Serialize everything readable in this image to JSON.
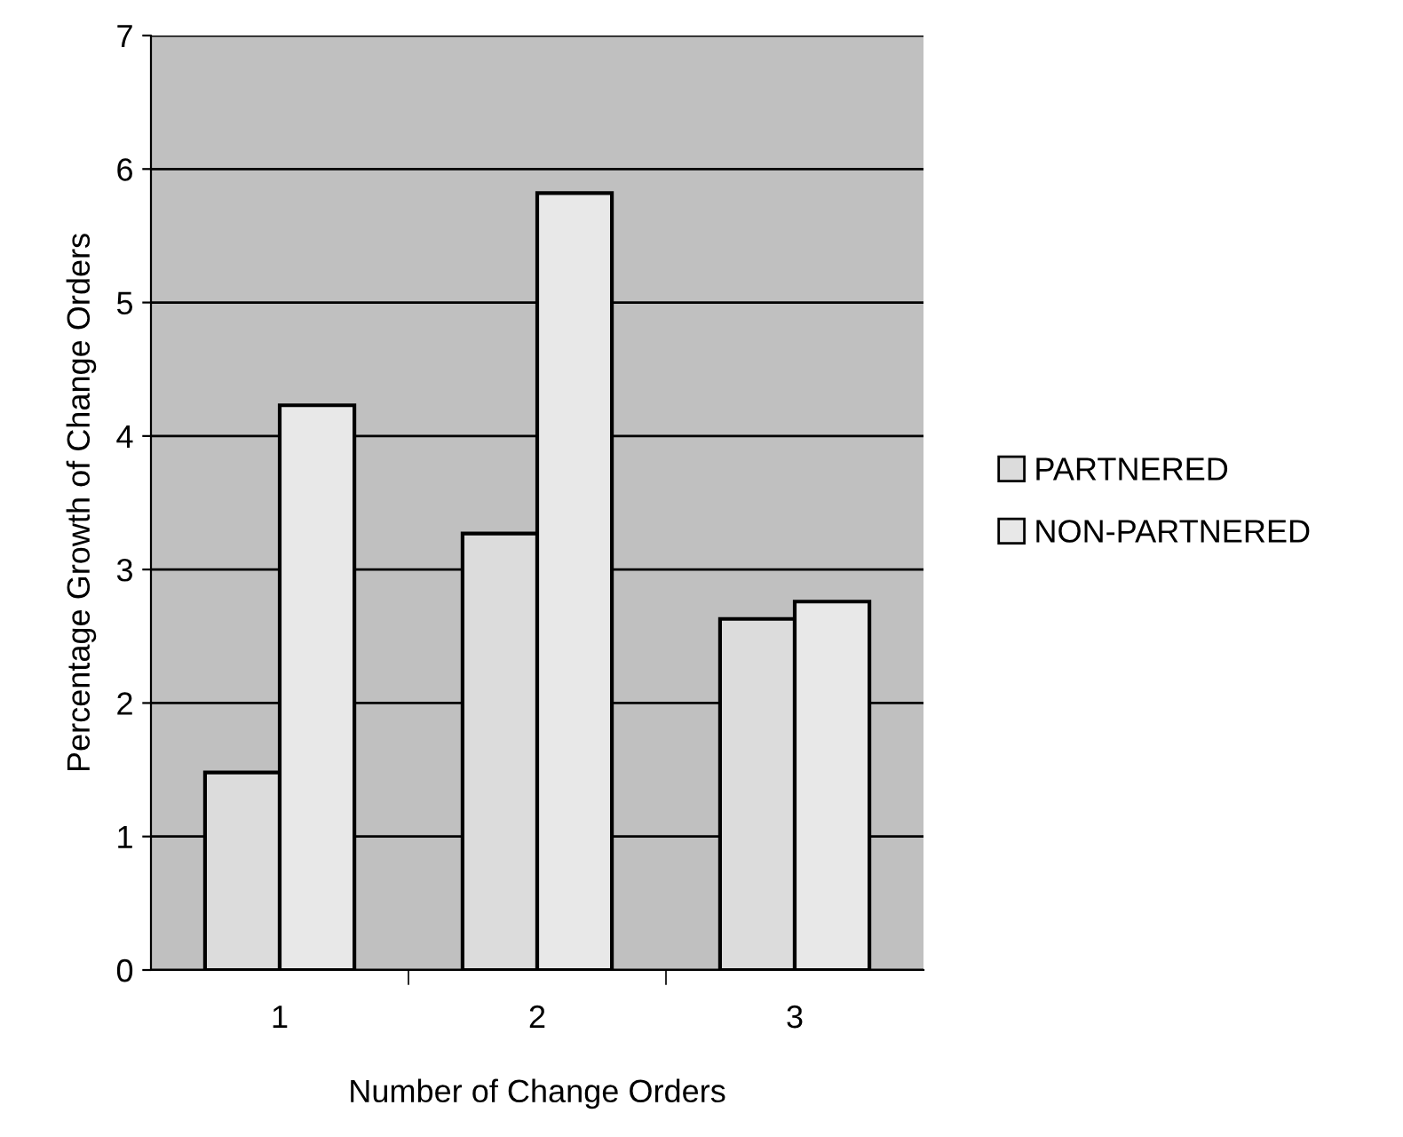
{
  "chart_data": {
    "type": "bar",
    "xlabel": "Number of Change Orders",
    "ylabel": "Percentage Growth of Change Orders",
    "categories": [
      "1",
      "2",
      "3"
    ],
    "series": [
      {
        "name": "PARTNERED",
        "color": "#dcdcdc",
        "values": [
          1.48,
          3.27,
          2.63
        ]
      },
      {
        "name": "NON-PARTNERED",
        "color": "#e8e8e8",
        "values": [
          4.23,
          5.82,
          2.76
        ]
      }
    ],
    "ylim": [
      0,
      7
    ],
    "yticks": [
      0,
      1,
      2,
      3,
      4,
      5,
      6,
      7
    ],
    "grid": "y",
    "legend": "right"
  }
}
